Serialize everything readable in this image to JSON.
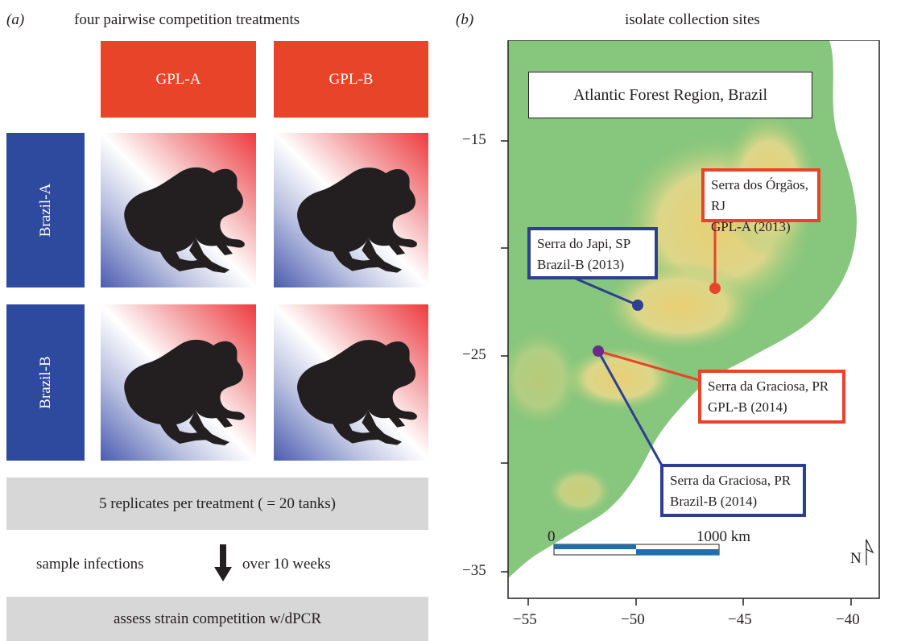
{
  "panel_a": {
    "label": "(a)",
    "title": "four pairwise competition treatments",
    "columns": [
      "GPL-A",
      "GPL-B"
    ],
    "rows": [
      "Brazil-A",
      "Brazil-B"
    ],
    "replicates_text": "5 replicates per treatment ( = 20 tanks)",
    "sample_left": "sample infections",
    "sample_right": "over 10 weeks",
    "assess_text": "assess strain competition w/dPCR"
  },
  "panel_b": {
    "label": "(b)",
    "title": "isolate collection sites",
    "region_title": "Atlantic Forest Region, Brazil",
    "sites": [
      {
        "name": "Serra dos Órgãos, RJ",
        "strain": "GPL-A (2013)",
        "color": "#e8442a",
        "lon": -46.2,
        "lat": -21.3
      },
      {
        "name": "Serra do Japi, SP",
        "strain": "Brazil-B (2013)",
        "color": "#2e3f8f",
        "lon": -50.0,
        "lat": -22.6
      },
      {
        "name": "Serra da Graciosa, PR",
        "strain": "GPL-B (2014)",
        "color": "#e8442a",
        "lon": -51.8,
        "lat": -24.7
      },
      {
        "name": "Serra da Graciosa, PR",
        "strain": "Brazil-B (2014)",
        "color": "#2e3f8f",
        "lon": -51.8,
        "lat": -24.7
      }
    ],
    "x_ticks": [
      "−55",
      "−50",
      "−45",
      "−40"
    ],
    "y_ticks": [
      "−15",
      "−25",
      "−35"
    ],
    "scale_start": "0",
    "scale_end": "1000 km",
    "north_label": "N",
    "colors": {
      "land_low": "#7bc47a",
      "land_high": "#e8d27a",
      "ocean": "#ffffff",
      "red": "#e8442a",
      "blue": "#2e3f8f",
      "purple": "#6a2a8a"
    }
  }
}
